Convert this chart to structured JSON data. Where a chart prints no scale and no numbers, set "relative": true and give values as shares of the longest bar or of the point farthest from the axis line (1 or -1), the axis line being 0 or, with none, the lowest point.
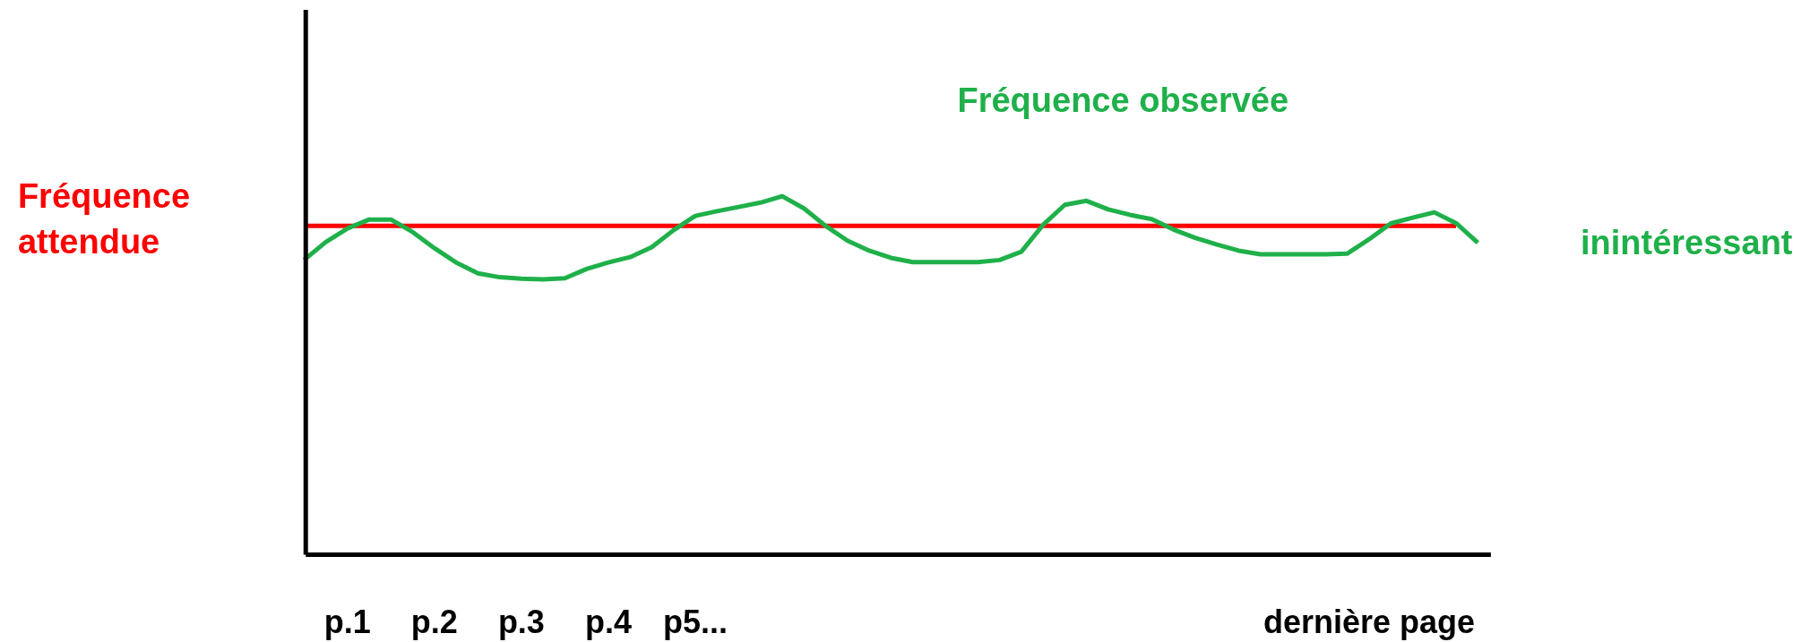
{
  "chart_data": {
    "type": "line",
    "relative": true,
    "categories": [
      null,
      null,
      "p.1",
      null,
      null,
      null,
      "p.2",
      null,
      null,
      null,
      "p.3",
      null,
      null,
      null,
      "p.4",
      null,
      null,
      null,
      "p5...",
      null,
      null,
      null,
      null,
      null,
      null,
      null,
      null,
      null,
      null,
      null,
      null,
      null,
      null,
      null,
      null,
      null,
      null,
      null,
      null,
      null,
      null,
      null,
      null,
      null,
      null,
      null,
      null,
      null,
      null,
      "dernière page",
      null,
      null,
      null,
      null,
      null
    ],
    "series": [
      {
        "name": "Fréquence attendue",
        "color": "#ff0000",
        "values": [
          0.917,
          0.917,
          0.917,
          0.917,
          0.917,
          0.917,
          0.917,
          0.917,
          0.917,
          0.917,
          0.917,
          0.917,
          0.917,
          0.917,
          0.917,
          0.917,
          0.917,
          0.917,
          0.917,
          0.917,
          0.917,
          0.917,
          0.917,
          0.917,
          0.917,
          0.917,
          0.917,
          0.917,
          0.917,
          0.917,
          0.917,
          0.917,
          0.917,
          0.917,
          0.917,
          0.917,
          0.917,
          0.917,
          0.917,
          0.917,
          0.917,
          0.917,
          0.917,
          0.917,
          0.917,
          0.917,
          0.917,
          0.917,
          0.917,
          0.917,
          0.917,
          0.917,
          0.917,
          0.917,
          null
        ]
      },
      {
        "name": "Fréquence observée",
        "color": "#1fb04a",
        "values": [
          0.822,
          0.872,
          0.91,
          0.935,
          0.935,
          0.9,
          0.855,
          0.815,
          0.785,
          0.774,
          0.77,
          0.768,
          0.771,
          0.797,
          0.815,
          0.83,
          0.858,
          0.905,
          0.945,
          0.958,
          0.97,
          0.982,
          1.0,
          0.966,
          0.917,
          0.876,
          0.848,
          0.828,
          0.816,
          0.816,
          0.816,
          0.816,
          0.822,
          0.845,
          0.92,
          0.976,
          0.987,
          0.963,
          0.948,
          0.936,
          0.907,
          0.884,
          0.865,
          0.848,
          0.838,
          0.838,
          0.838,
          0.838,
          0.84,
          0.88,
          0.924,
          0.94,
          0.955,
          0.925,
          0.87
        ]
      }
    ],
    "annotations": [
      "inintéressant"
    ],
    "marker": "none",
    "line_style": "solid",
    "grid": false
  }
}
